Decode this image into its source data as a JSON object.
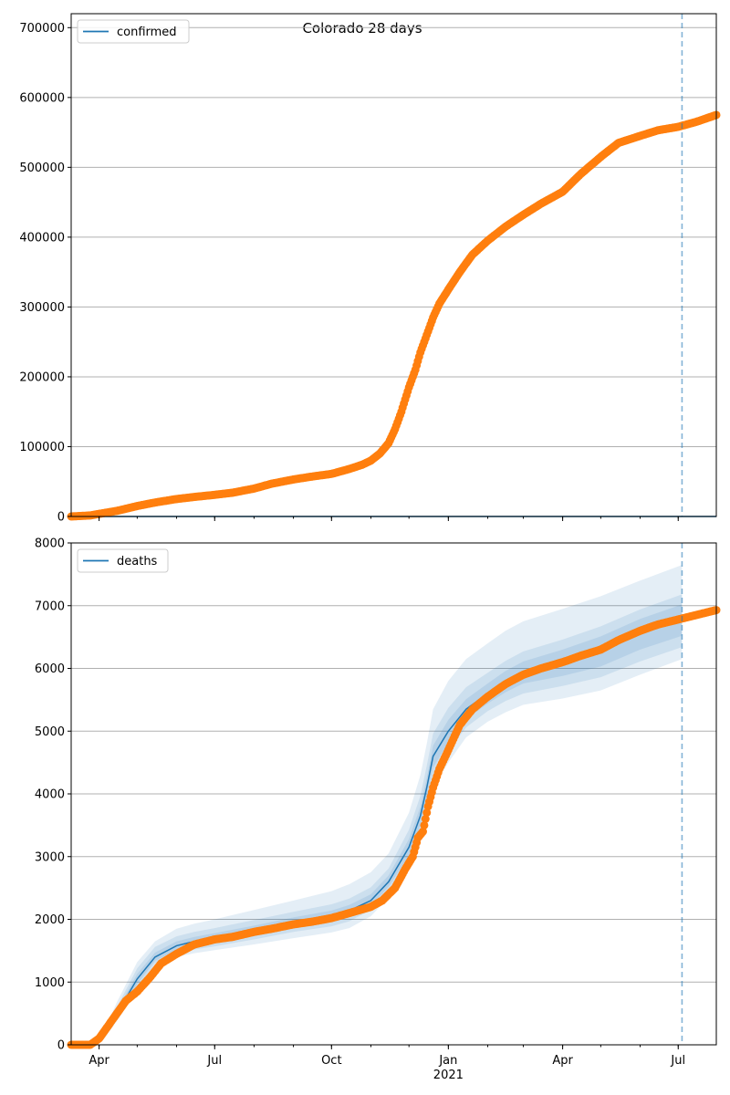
{
  "figure": {
    "suptitle": "Colorado 28 days"
  },
  "colors": {
    "series_line": "#1f77b4",
    "observed_points": "#ff7f0e",
    "band": "#1f77b4",
    "vline": "#1f77b4",
    "grid": "#b0b0b0"
  },
  "chart_data": [
    {
      "type": "line",
      "id": "confirmed",
      "legend": [
        "confirmed"
      ],
      "legend_position": "upper-left",
      "grid": "horizontal",
      "ylim": [
        0,
        720000
      ],
      "yticks": [
        0,
        100000,
        200000,
        300000,
        400000,
        500000,
        600000,
        700000
      ],
      "xlim": [
        "2020-03-10",
        "2021-07-31"
      ],
      "xticks": [],
      "forecast_start": "2021-07-04",
      "model_line": {
        "x": [
          "2020-03-10",
          "2021-07-31"
        ],
        "y": [
          0,
          0
        ]
      },
      "observed": {
        "x": [
          "2020-03-10",
          "2020-03-25",
          "2020-04-05",
          "2020-04-15",
          "2020-05-01",
          "2020-05-15",
          "2020-06-01",
          "2020-06-15",
          "2020-07-01",
          "2020-07-15",
          "2020-08-01",
          "2020-08-15",
          "2020-09-01",
          "2020-09-15",
          "2020-10-01",
          "2020-10-15",
          "2020-10-25",
          "2020-11-01",
          "2020-11-08",
          "2020-11-15",
          "2020-11-20",
          "2020-11-25",
          "2020-12-01",
          "2020-12-06",
          "2020-12-10",
          "2020-12-15",
          "2020-12-20",
          "2020-12-25",
          "2021-01-01",
          "2021-01-10",
          "2021-01-20",
          "2021-02-01",
          "2021-02-15",
          "2021-03-01",
          "2021-03-15",
          "2021-04-01",
          "2021-04-15",
          "2021-05-01",
          "2021-05-15",
          "2021-06-01",
          "2021-06-15",
          "2021-07-01",
          "2021-07-15",
          "2021-07-31"
        ],
        "y": [
          0,
          1500,
          5000,
          8000,
          15000,
          20000,
          25000,
          28000,
          31000,
          34000,
          40000,
          47000,
          53000,
          57000,
          61000,
          68000,
          74000,
          80000,
          90000,
          105000,
          125000,
          150000,
          185000,
          210000,
          235000,
          260000,
          285000,
          305000,
          325000,
          350000,
          375000,
          395000,
          415000,
          432000,
          448000,
          465000,
          490000,
          515000,
          535000,
          545000,
          553000,
          558000,
          565000,
          575000
        ]
      }
    },
    {
      "type": "line",
      "id": "deaths",
      "legend": [
        "deaths"
      ],
      "legend_position": "upper-left",
      "grid": "horizontal",
      "ylim": [
        0,
        8000
      ],
      "yticks": [
        0,
        1000,
        2000,
        3000,
        4000,
        5000,
        6000,
        7000,
        8000
      ],
      "xlim": [
        "2020-03-10",
        "2021-07-31"
      ],
      "xticks": [
        {
          "date": "2020-04-01",
          "label": "Apr"
        },
        {
          "date": "2020-07-01",
          "label": "Jul"
        },
        {
          "date": "2020-10-01",
          "label": "Oct"
        },
        {
          "date": "2021-01-01",
          "label": "Jan",
          "sub": "2021"
        },
        {
          "date": "2021-04-01",
          "label": "Apr"
        },
        {
          "date": "2021-07-01",
          "label": "Jul"
        }
      ],
      "forecast_start": "2021-07-04",
      "model": {
        "x": [
          "2020-03-10",
          "2020-03-25",
          "2020-04-05",
          "2020-04-15",
          "2020-05-01",
          "2020-05-15",
          "2020-06-01",
          "2020-06-15",
          "2020-07-01",
          "2020-08-01",
          "2020-09-01",
          "2020-10-01",
          "2020-10-15",
          "2020-11-01",
          "2020-11-15",
          "2020-12-01",
          "2020-12-10",
          "2020-12-15",
          "2020-12-20",
          "2021-01-01",
          "2021-01-15",
          "2021-02-01",
          "2021-02-15",
          "2021-03-01",
          "2021-04-01",
          "2021-05-01",
          "2021-06-01",
          "2021-07-04"
        ],
        "median": [
          0,
          0,
          150,
          500,
          1050,
          1400,
          1580,
          1650,
          1700,
          1820,
          1950,
          2050,
          2140,
          2300,
          2600,
          3150,
          3650,
          4100,
          4600,
          5000,
          5350,
          5600,
          5800,
          5950,
          6100,
          6300,
          6600,
          6800
        ],
        "band90_lo": [
          0,
          0,
          100,
          380,
          860,
          1250,
          1400,
          1460,
          1510,
          1600,
          1700,
          1790,
          1860,
          2050,
          2350,
          2800,
          3250,
          3700,
          4100,
          4500,
          4900,
          5150,
          5300,
          5420,
          5520,
          5650,
          5900,
          6150
        ],
        "band90_hi": [
          0,
          0,
          220,
          680,
          1320,
          1650,
          1850,
          1930,
          2000,
          2150,
          2300,
          2450,
          2560,
          2750,
          3050,
          3700,
          4300,
          4800,
          5350,
          5800,
          6150,
          6400,
          6600,
          6750,
          6950,
          7150,
          7400,
          7650
        ],
        "band70_lo": [
          0,
          0,
          120,
          420,
          920,
          1300,
          1460,
          1520,
          1570,
          1680,
          1800,
          1890,
          1970,
          2150,
          2450,
          2930,
          3400,
          3850,
          4280,
          4680,
          5060,
          5320,
          5480,
          5600,
          5720,
          5860,
          6110,
          6340
        ],
        "band70_hi": [
          0,
          0,
          190,
          600,
          1220,
          1560,
          1730,
          1800,
          1860,
          1990,
          2120,
          2240,
          2330,
          2510,
          2810,
          3430,
          3970,
          4450,
          4960,
          5370,
          5700,
          5930,
          6120,
          6270,
          6460,
          6670,
          6940,
          7180
        ],
        "band50_lo": [
          0,
          0,
          130,
          450,
          970,
          1340,
          1510,
          1570,
          1620,
          1740,
          1870,
          1960,
          2040,
          2210,
          2520,
          3020,
          3500,
          3960,
          4420,
          4820,
          5190,
          5440,
          5620,
          5760,
          5880,
          6030,
          6300,
          6520
        ],
        "band50_hi": [
          0,
          0,
          170,
          550,
          1130,
          1470,
          1650,
          1720,
          1780,
          1900,
          2030,
          2140,
          2230,
          2400,
          2700,
          3280,
          3800,
          4250,
          4770,
          5180,
          5510,
          5760,
          5960,
          6110,
          6300,
          6510,
          6790,
          7020
        ]
      },
      "observed": {
        "x": [
          "2020-03-10",
          "2020-03-25",
          "2020-04-01",
          "2020-04-08",
          "2020-04-15",
          "2020-04-22",
          "2020-05-01",
          "2020-05-10",
          "2020-05-20",
          "2020-06-01",
          "2020-06-15",
          "2020-07-01",
          "2020-07-15",
          "2020-08-01",
          "2020-08-15",
          "2020-09-01",
          "2020-09-15",
          "2020-10-01",
          "2020-10-15",
          "2020-11-01",
          "2020-11-10",
          "2020-11-20",
          "2020-11-28",
          "2020-12-04",
          "2020-12-08",
          "2020-12-12",
          "2020-12-16",
          "2020-12-20",
          "2020-12-25",
          "2021-01-01",
          "2021-01-10",
          "2021-01-20",
          "2021-02-01",
          "2021-02-15",
          "2021-03-01",
          "2021-03-15",
          "2021-04-01",
          "2021-04-15",
          "2021-05-01",
          "2021-05-15",
          "2021-06-01",
          "2021-06-15",
          "2021-07-01",
          "2021-07-15",
          "2021-07-31"
        ],
        "y": [
          0,
          0,
          100,
          300,
          500,
          700,
          850,
          1050,
          1300,
          1450,
          1600,
          1680,
          1720,
          1800,
          1850,
          1920,
          1960,
          2020,
          2100,
          2200,
          2300,
          2500,
          2800,
          3000,
          3300,
          3400,
          3800,
          4100,
          4400,
          4700,
          5100,
          5350,
          5550,
          5750,
          5900,
          6000,
          6100,
          6200,
          6300,
          6450,
          6600,
          6700,
          6780,
          6850,
          6930
        ]
      }
    }
  ]
}
